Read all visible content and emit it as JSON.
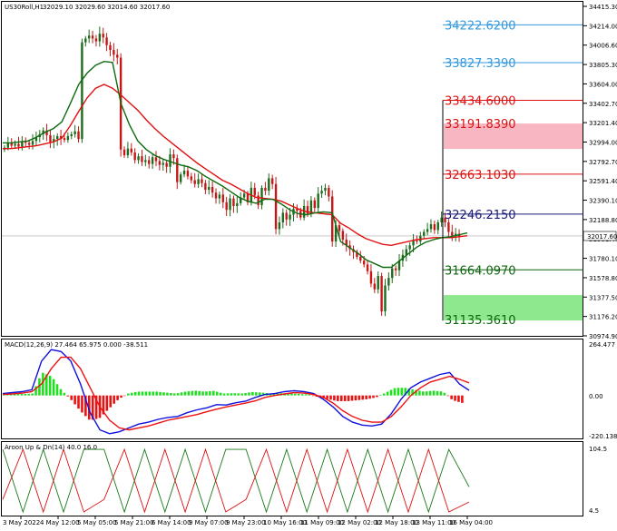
{
  "header": {
    "symbol": "US30Roll,H1",
    "ohlc": "32029.10 32029.60 32014.60 32017.60"
  },
  "price_axis_labels": [
    "34415.30",
    "34214.00",
    "34006.60",
    "33805.30",
    "33604.00",
    "33402.70",
    "33201.40",
    "32994.00",
    "32792.70",
    "32591.40",
    "32390.10",
    "32188.80",
    "31981.40",
    "31780.10",
    "31578.80",
    "31377.50",
    "31176.20",
    "30974.90"
  ],
  "current_price": "32017.60",
  "levels": [
    {
      "value": "34222.6200",
      "color": "#3399dd",
      "kind": "line"
    },
    {
      "value": "33827.3390",
      "color": "#3399dd",
      "kind": "line"
    },
    {
      "value": "33434.6000",
      "color": "#dd1111",
      "kind": "line"
    },
    {
      "value": "33191.8390",
      "color": "#dd1111",
      "kind": "zone"
    },
    {
      "value": "32663.1030",
      "color": "#dd1111",
      "kind": "line"
    },
    {
      "value": "32246.2150",
      "color": "#1a1a7a",
      "kind": "line"
    },
    {
      "value": "31664.0970",
      "color": "#116611",
      "kind": "line"
    },
    {
      "value": "31135.3610",
      "color": "#116611",
      "kind": "zone"
    }
  ],
  "macd": {
    "title": "MACD(12,26,9) 27.464 65.975 0.000 -38.511",
    "axis_labels": [
      "264.477",
      "0.00",
      "-220.138"
    ]
  },
  "aroon": {
    "title": "Aroon Up & Dn(14) 40.0 16.0",
    "axis_labels": [
      "104.5",
      "4.5"
    ]
  },
  "time_labels": [
    "3 May 2022",
    "4 May 12:00",
    "5 May 05:00",
    "5 May 21:00",
    "6 May 14:00",
    "9 May 07:00",
    "9 May 23:00",
    "10 May 16:00",
    "11 May 09:00",
    "12 May 02:00",
    "12 May 18:00",
    "13 May 11:00",
    "16 May 04:00"
  ],
  "chart_data": {
    "type": "candlestick",
    "symbol": "US30Roll,H1",
    "ylim": [
      30974.9,
      34415.3
    ],
    "series": [
      {
        "name": "price",
        "values": [
          32940,
          32990,
          32960,
          32980,
          32950,
          33000,
          32990,
          32970,
          33010,
          33050,
          33080,
          33120,
          33070,
          33000,
          33030,
          33060,
          33040,
          33020,
          33060,
          33080,
          33110,
          33030,
          34040,
          34080,
          34110,
          34080,
          34050,
          34130,
          34090,
          34010,
          33960,
          33910,
          33880,
          32920,
          32860,
          32930,
          32890,
          32810,
          32850,
          32790,
          32810,
          32770,
          32840,
          32800,
          32760,
          32780,
          32740,
          32870,
          32830,
          32580,
          32660,
          32700,
          32640,
          32600,
          32560,
          32610,
          32570,
          32500,
          32530,
          32470,
          32410,
          32450,
          32370,
          32290,
          32410,
          32330,
          32360,
          32420,
          32460,
          32370,
          32520,
          32440,
          32340,
          32520,
          32490,
          32620,
          32560,
          32090,
          32160,
          32260,
          32190,
          32240,
          32300,
          32280,
          32210,
          32330,
          32250,
          32390,
          32310,
          32460,
          32490,
          32520,
          32430,
          31960,
          32130,
          32070,
          31980,
          31920,
          31880,
          31850,
          31800,
          31760,
          31720,
          31650,
          31520,
          31460,
          31600,
          31230,
          31500,
          31580,
          31680,
          31660,
          31760,
          31820,
          31880,
          31920,
          31970,
          31960,
          32020,
          32060,
          32090,
          32140,
          32080,
          32160,
          32210,
          32160,
          32060,
          32020,
          32040,
          32018
        ]
      },
      {
        "name": "MA fast (green)",
        "values": [
          32990,
          32990,
          33000,
          33010,
          33050,
          33100,
          33140,
          33210,
          33400,
          33600,
          33720,
          33800,
          33840,
          33830,
          33400,
          33180,
          33010,
          32920,
          32860,
          32820,
          32790,
          32760,
          32740,
          32700,
          32640,
          32590,
          32540,
          32480,
          32420,
          32380,
          32360,
          32400,
          32400,
          32350,
          32290,
          32250,
          32240,
          32260,
          32270,
          32260,
          31960,
          31900,
          31840,
          31770,
          31730,
          31690,
          31690,
          31760,
          31830,
          31900,
          31950,
          31980,
          32000,
          32010,
          32030,
          32050
        ]
      },
      {
        "name": "MA slow (red)",
        "values": [
          32930,
          32930,
          32940,
          32950,
          32960,
          32980,
          33000,
          33040,
          33170,
          33320,
          33460,
          33560,
          33600,
          33560,
          33490,
          33410,
          33330,
          33230,
          33140,
          33060,
          32990,
          32920,
          32850,
          32780,
          32720,
          32660,
          32600,
          32560,
          32510,
          32460,
          32420,
          32410,
          32400,
          32380,
          32340,
          32300,
          32270,
          32260,
          32250,
          32240,
          32150,
          32100,
          32040,
          31990,
          31960,
          31930,
          31920,
          31940,
          31960,
          31980,
          31990,
          32000,
          32000,
          32000,
          32010,
          32020
        ]
      },
      {
        "name": "MACD",
        "values": [
          10,
          15,
          20,
          30,
          180,
          240,
          230,
          180,
          60,
          -90,
          -180,
          -200,
          -190,
          -170,
          -150,
          -140,
          -125,
          -115,
          -110,
          -90,
          -75,
          -65,
          -48,
          -50,
          -38,
          -30,
          -10,
          5,
          10,
          20,
          25,
          20,
          10,
          -20,
          -60,
          -110,
          -140,
          -155,
          -160,
          -150,
          -95,
          -20,
          40,
          70,
          90,
          110,
          120,
          60,
          27
        ]
      },
      {
        "name": "Signal",
        "values": [
          5,
          8,
          12,
          20,
          60,
          140,
          200,
          200,
          140,
          40,
          -60,
          -130,
          -170,
          -180,
          -170,
          -160,
          -145,
          -130,
          -120,
          -110,
          -100,
          -85,
          -72,
          -60,
          -50,
          -40,
          -28,
          -10,
          0,
          8,
          15,
          12,
          5,
          -10,
          -40,
          -80,
          -110,
          -130,
          -140,
          -140,
          -110,
          -60,
          0,
          40,
          70,
          85,
          100,
          85,
          66
        ]
      },
      {
        "name": "Aroon Up",
        "values": [
          100,
          0,
          100,
          0,
          100,
          100,
          0,
          100,
          0,
          100,
          0,
          100,
          100,
          0,
          100,
          0,
          100,
          0,
          100,
          0,
          100,
          0,
          100,
          40
        ]
      },
      {
        "name": "Aroon Down",
        "values": [
          20,
          100,
          0,
          100,
          0,
          20,
          100,
          0,
          100,
          0,
          100,
          0,
          20,
          100,
          0,
          100,
          0,
          100,
          0,
          100,
          0,
          100,
          0,
          16
        ]
      }
    ]
  }
}
